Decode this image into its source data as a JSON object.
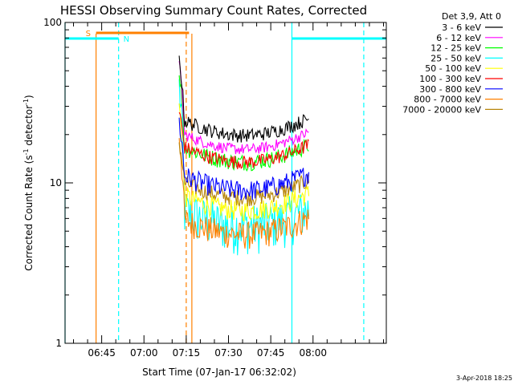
{
  "chart_data": {
    "type": "line",
    "title": "HESSI Observing Summary Count Rates, Corrected",
    "xlabel": "Start Time (07-Jan-17 06:32:02)",
    "ylabel_main": "Corrected Count Rate (s",
    "ylabel_exp1": "-1",
    "ylabel_mid": " detector",
    "ylabel_exp2": "-1",
    "ylabel_end": ")",
    "yscale": "log",
    "ylim": [
      1,
      100
    ],
    "xlim_minutes": [
      0,
      114
    ],
    "x_ticks": [
      {
        "label": "06:45",
        "t": 13
      },
      {
        "label": "07:00",
        "t": 28
      },
      {
        "label": "07:15",
        "t": 43
      },
      {
        "label": "07:30",
        "t": 58
      },
      {
        "label": "07:45",
        "t": 73
      },
      {
        "label": "08:00",
        "t": 88
      }
    ],
    "y_ticks": [
      {
        "label": "1",
        "v": 1
      },
      {
        "label": "10",
        "v": 10
      },
      {
        "label": "100",
        "v": 100
      }
    ],
    "legend_title": "Det 3,9, Att 0",
    "series": [
      {
        "name": "3 - 6 keV",
        "color": "#000000",
        "level": 22,
        "spike": 60,
        "noise": 0.1
      },
      {
        "name": "6 - 12 keV",
        "color": "#ff00ff",
        "level": 18,
        "spike": 55,
        "noise": 0.08
      },
      {
        "name": "12 - 25 keV",
        "color": "#00ff00",
        "level": 15,
        "spike": 50,
        "noise": 0.12
      },
      {
        "name": "25 - 50 keV",
        "color": "#00ffff",
        "level": 6,
        "spike": 40,
        "noise": 0.35
      },
      {
        "name": "50 - 100 keV",
        "color": "#ffff00",
        "level": 7.5,
        "spike": 30,
        "noise": 0.15
      },
      {
        "name": "100 - 300 keV",
        "color": "#ff0000",
        "level": 15,
        "spike": 28,
        "noise": 0.1
      },
      {
        "name": "300 - 800 keV",
        "color": "#0000ff",
        "level": 10,
        "spike": 24,
        "noise": 0.15
      },
      {
        "name": "800 - 7000 keV",
        "color": "#ff8000",
        "level": 5.3,
        "spike": 20,
        "noise": 0.2
      },
      {
        "name": "7000 - 20000 keV",
        "color": "#b8860b",
        "level": 9,
        "spike": 18,
        "noise": 0.12
      }
    ],
    "data_window_minutes": [
      40.5,
      86.5
    ],
    "flags": {
      "S_label": "S",
      "N_label": "N",
      "S_color": "#ff8000",
      "N_color": "#00ffff",
      "N_bar_minutes": [
        [
          0,
          19
        ],
        [
          80.5,
          114
        ]
      ],
      "S_bar_minutes": [
        [
          11,
          44
        ]
      ],
      "vlines_solid_cyan": [
        0,
        80.5
      ],
      "vlines_dashed_cyan": [
        19,
        106
      ],
      "vlines_solid_orange": [
        11,
        45
      ],
      "vlines_dashed_orange": [
        43
      ]
    }
  },
  "footer": {
    "timestamp": "3-Apr-2018 18:25"
  }
}
